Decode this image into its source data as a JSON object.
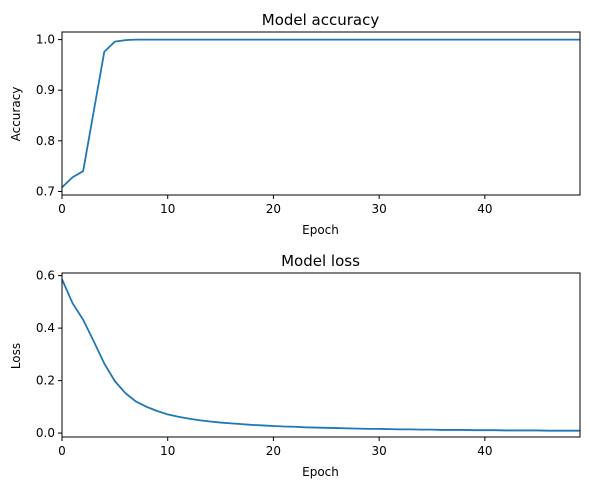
{
  "chart_data": [
    {
      "type": "line",
      "title": "Model accuracy",
      "xlabel": "Epoch",
      "ylabel": "Accuracy",
      "xlim": [
        0,
        49
      ],
      "ylim": [
        0.693,
        1.015
      ],
      "xticks": [
        0,
        10,
        20,
        30,
        40
      ],
      "yticks": [
        0.7,
        0.8,
        0.9,
        1.0
      ],
      "ytick_labels": [
        "0.7",
        "0.8",
        "0.9",
        "1.0"
      ],
      "grid": false,
      "line_color": "#1f77b4",
      "x": [
        0,
        1,
        2,
        3,
        4,
        5,
        6,
        7,
        8,
        9,
        10,
        11,
        12,
        13,
        14,
        15,
        16,
        17,
        18,
        19,
        20,
        21,
        22,
        23,
        24,
        25,
        26,
        27,
        28,
        29,
        30,
        31,
        32,
        33,
        34,
        35,
        36,
        37,
        38,
        39,
        40,
        41,
        42,
        43,
        44,
        45,
        46,
        47,
        48,
        49
      ],
      "values": [
        0.708,
        0.728,
        0.74,
        0.858,
        0.976,
        0.996,
        0.999,
        1.0,
        1.0,
        1.0,
        1.0,
        1.0,
        1.0,
        1.0,
        1.0,
        1.0,
        1.0,
        1.0,
        1.0,
        1.0,
        1.0,
        1.0,
        1.0,
        1.0,
        1.0,
        1.0,
        1.0,
        1.0,
        1.0,
        1.0,
        1.0,
        1.0,
        1.0,
        1.0,
        1.0,
        1.0,
        1.0,
        1.0,
        1.0,
        1.0,
        1.0,
        1.0,
        1.0,
        1.0,
        1.0,
        1.0,
        1.0,
        1.0,
        1.0,
        1.0
      ]
    },
    {
      "type": "line",
      "title": "Model loss",
      "xlabel": "Epoch",
      "ylabel": "Loss",
      "xlim": [
        0,
        49
      ],
      "ylim": [
        -0.015,
        0.61
      ],
      "xticks": [
        0,
        10,
        20,
        30,
        40
      ],
      "yticks": [
        0.0,
        0.2,
        0.4,
        0.6
      ],
      "ytick_labels": [
        "0.0",
        "0.2",
        "0.4",
        "0.6"
      ],
      "grid": false,
      "line_color": "#1f77b4",
      "x": [
        0,
        1,
        2,
        3,
        4,
        5,
        6,
        7,
        8,
        9,
        10,
        11,
        12,
        13,
        14,
        15,
        16,
        17,
        18,
        19,
        20,
        21,
        22,
        23,
        24,
        25,
        26,
        27,
        28,
        29,
        30,
        31,
        32,
        33,
        34,
        35,
        36,
        37,
        38,
        39,
        40,
        41,
        42,
        43,
        44,
        45,
        46,
        47,
        48,
        49
      ],
      "values": [
        0.586,
        0.495,
        0.432,
        0.35,
        0.265,
        0.198,
        0.152,
        0.12,
        0.1,
        0.084,
        0.071,
        0.062,
        0.055,
        0.049,
        0.044,
        0.04,
        0.037,
        0.034,
        0.031,
        0.029,
        0.027,
        0.025,
        0.024,
        0.022,
        0.021,
        0.02,
        0.019,
        0.018,
        0.017,
        0.016,
        0.016,
        0.015,
        0.014,
        0.014,
        0.013,
        0.013,
        0.012,
        0.012,
        0.012,
        0.011,
        0.011,
        0.011,
        0.01,
        0.01,
        0.01,
        0.01,
        0.009,
        0.009,
        0.009,
        0.009
      ]
    }
  ]
}
